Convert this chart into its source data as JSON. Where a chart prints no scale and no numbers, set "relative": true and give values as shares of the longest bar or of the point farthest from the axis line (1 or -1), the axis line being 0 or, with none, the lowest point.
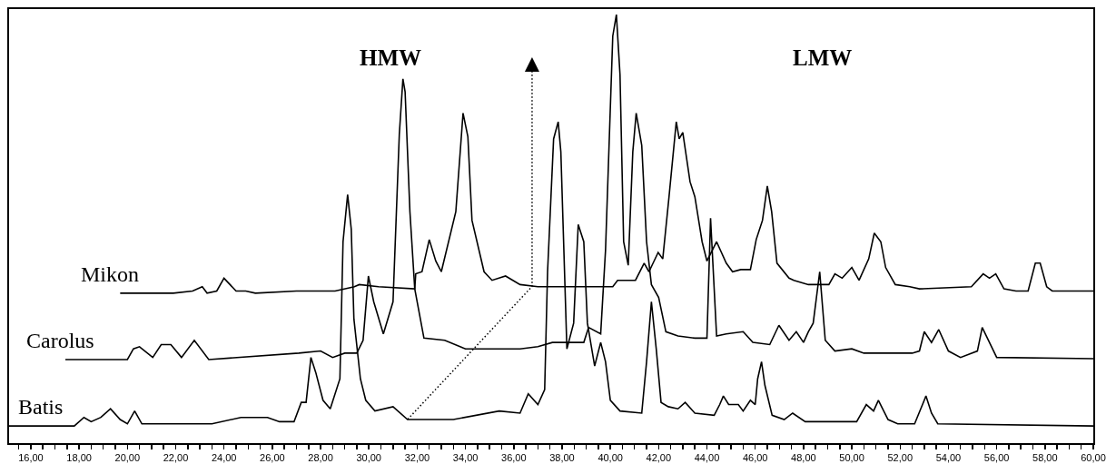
{
  "chart_data": {
    "type": "line",
    "relative": true,
    "legend": false,
    "grid": false,
    "marker": "none",
    "line_style": "solid",
    "annotations": [
      "HMW",
      "LMW"
    ],
    "xlim": [
      15.1,
      60
    ],
    "xticks": [
      {
        "value": 15.5,
        "label": null
      },
      {
        "value": 16,
        "label": "16,00"
      },
      {
        "value": 16.5,
        "label": null
      },
      {
        "value": 17,
        "label": null
      },
      {
        "value": 17.5,
        "label": null
      },
      {
        "value": 18,
        "label": "18,00"
      },
      {
        "value": 18.5,
        "label": null
      },
      {
        "value": 19,
        "label": null
      },
      {
        "value": 19.5,
        "label": null
      },
      {
        "value": 20,
        "label": "20,00"
      },
      {
        "value": 20.5,
        "label": null
      },
      {
        "value": 21,
        "label": null
      },
      {
        "value": 21.5,
        "label": null
      },
      {
        "value": 22,
        "label": "22,00"
      },
      {
        "value": 22.5,
        "label": null
      },
      {
        "value": 23,
        "label": null
      },
      {
        "value": 23.5,
        "label": null
      },
      {
        "value": 24,
        "label": "24,00"
      },
      {
        "value": 24.5,
        "label": null
      },
      {
        "value": 25,
        "label": null
      },
      {
        "value": 25.5,
        "label": null
      },
      {
        "value": 26,
        "label": "26,00"
      },
      {
        "value": 26.5,
        "label": null
      },
      {
        "value": 27,
        "label": null
      },
      {
        "value": 27.5,
        "label": null
      },
      {
        "value": 28,
        "label": "28,00"
      },
      {
        "value": 28.5,
        "label": null
      },
      {
        "value": 29,
        "label": null
      },
      {
        "value": 29.5,
        "label": null
      },
      {
        "value": 30,
        "label": "30,00"
      },
      {
        "value": 30.5,
        "label": null
      },
      {
        "value": 31,
        "label": null
      },
      {
        "value": 31.5,
        "label": null
      },
      {
        "value": 32,
        "label": "32,00"
      },
      {
        "value": 32.5,
        "label": null
      },
      {
        "value": 33,
        "label": null
      },
      {
        "value": 33.5,
        "label": null
      },
      {
        "value": 34,
        "label": "34,00"
      },
      {
        "value": 34.5,
        "label": null
      },
      {
        "value": 35,
        "label": null
      },
      {
        "value": 35.5,
        "label": null
      },
      {
        "value": 36,
        "label": "36,00"
      },
      {
        "value": 36.5,
        "label": null
      },
      {
        "value": 37,
        "label": null
      },
      {
        "value": 37.5,
        "label": null
      },
      {
        "value": 38,
        "label": "38,00"
      },
      {
        "value": 38.5,
        "label": null
      },
      {
        "value": 39,
        "label": null
      },
      {
        "value": 39.5,
        "label": null
      },
      {
        "value": 40,
        "label": "40,00"
      },
      {
        "value": 40.5,
        "label": null
      },
      {
        "value": 41,
        "label": null
      },
      {
        "value": 41.5,
        "label": null
      },
      {
        "value": 42,
        "label": "42,00"
      },
      {
        "value": 42.5,
        "label": null
      },
      {
        "value": 43,
        "label": null
      },
      {
        "value": 43.5,
        "label": null
      },
      {
        "value": 44,
        "label": "44,00"
      },
      {
        "value": 44.5,
        "label": null
      },
      {
        "value": 45,
        "label": null
      },
      {
        "value": 45.5,
        "label": null
      },
      {
        "value": 46,
        "label": "46,00"
      },
      {
        "value": 46.5,
        "label": null
      },
      {
        "value": 47,
        "label": null
      },
      {
        "value": 47.5,
        "label": null
      },
      {
        "value": 48,
        "label": "48,00"
      },
      {
        "value": 48.5,
        "label": null
      },
      {
        "value": 49,
        "label": null
      },
      {
        "value": 49.5,
        "label": null
      },
      {
        "value": 50,
        "label": "50,00"
      },
      {
        "value": 50.5,
        "label": null
      },
      {
        "value": 51,
        "label": null
      },
      {
        "value": 51.5,
        "label": null
      },
      {
        "value": 52,
        "label": "52,00"
      },
      {
        "value": 52.5,
        "label": null
      },
      {
        "value": 53,
        "label": null
      },
      {
        "value": 53.5,
        "label": null
      },
      {
        "value": 54,
        "label": "54,00"
      },
      {
        "value": 54.5,
        "label": null
      },
      {
        "value": 55,
        "label": null
      },
      {
        "value": 55.5,
        "label": null
      },
      {
        "value": 56,
        "label": "56,00"
      },
      {
        "value": 56.5,
        "label": null
      },
      {
        "value": 57,
        "label": null
      },
      {
        "value": 57.5,
        "label": null
      },
      {
        "value": 58,
        "label": "58,00"
      },
      {
        "value": 58.5,
        "label": null
      },
      {
        "value": 59,
        "label": null
      },
      {
        "value": 59.5,
        "label": null
      },
      {
        "value": 60,
        "label": "60,00"
      }
    ],
    "series": [
      {
        "name": "Mikon",
        "color": "#000000",
        "x": [
          19.7,
          21.9,
          22.7,
          23.1,
          23.3,
          23.7,
          24.0,
          24.5,
          24.9,
          25.3,
          27.0,
          28.6,
          29.4,
          29.6,
          30.4,
          31.9,
          31.94,
          32.2,
          32.5,
          32.77,
          33.0,
          33.6,
          33.9,
          34.1,
          34.27,
          34.77,
          35.1,
          35.66,
          36.26,
          37.0,
          40.1,
          40.3,
          41.04,
          41.4,
          41.6,
          41.98,
          42.17,
          42.43,
          42.73,
          42.85,
          43.0,
          43.3,
          43.5,
          43.8,
          44.0,
          44.4,
          44.8,
          45.06,
          45.4,
          45.8,
          46.04,
          46.3,
          46.5,
          46.68,
          46.9,
          47.4,
          47.6,
          48.2,
          49.05,
          49.3,
          49.6,
          50.0,
          50.3,
          50.7,
          50.93,
          51.2,
          51.4,
          51.8,
          52.4,
          52.8,
          54.95,
          55.44,
          55.7,
          55.96,
          56.3,
          56.8,
          57.3,
          57.6,
          57.8,
          58.07,
          58.3,
          60
        ],
        "values": [
          0.35,
          0.35,
          0.355,
          0.365,
          0.35,
          0.355,
          0.385,
          0.355,
          0.355,
          0.35,
          0.355,
          0.355,
          0.365,
          0.37,
          0.365,
          0.36,
          0.395,
          0.4,
          0.475,
          0.425,
          0.4,
          0.54,
          0.77,
          0.715,
          0.52,
          0.4,
          0.38,
          0.39,
          0.37,
          0.365,
          0.365,
          0.38,
          0.38,
          0.42,
          0.4,
          0.445,
          0.43,
          0.575,
          0.75,
          0.71,
          0.725,
          0.61,
          0.575,
          0.47,
          0.425,
          0.47,
          0.42,
          0.4,
          0.405,
          0.405,
          0.475,
          0.52,
          0.6,
          0.54,
          0.42,
          0.385,
          0.38,
          0.37,
          0.37,
          0.395,
          0.385,
          0.41,
          0.38,
          0.43,
          0.49,
          0.47,
          0.41,
          0.37,
          0.365,
          0.36,
          0.365,
          0.395,
          0.385,
          0.395,
          0.36,
          0.355,
          0.355,
          0.42,
          0.42,
          0.365,
          0.355,
          0.355
        ]
      },
      {
        "name": "Carolus",
        "color": "#000000",
        "x": [
          17.43,
          20.0,
          20.25,
          20.5,
          21.05,
          21.4,
          21.8,
          22.24,
          22.77,
          23.37,
          27.1,
          28.0,
          28.5,
          29.0,
          29.5,
          29.76,
          29.98,
          30.2,
          30.6,
          31.0,
          31.26,
          31.41,
          31.5,
          31.7,
          31.9,
          32.28,
          33.14,
          34.0,
          35.1,
          36.26,
          37.0,
          37.6,
          38.2,
          38.9,
          39.1,
          39.6,
          39.8,
          40.1,
          40.25,
          40.4,
          40.55,
          40.74,
          40.93,
          41.07,
          41.3,
          41.5,
          41.7,
          42.0,
          42.3,
          42.8,
          43.5,
          44.0,
          44.15,
          44.4,
          44.8,
          45.5,
          45.9,
          46.6,
          46.98,
          47.4,
          47.7,
          48.0,
          48.2,
          48.4,
          48.67,
          48.9,
          49.3,
          50.0,
          50.5,
          52.5,
          52.8,
          53.0,
          53.3,
          53.6,
          54.0,
          54.5,
          55.2,
          55.4,
          56.0,
          60
        ],
        "values": [
          0.195,
          0.195,
          0.22,
          0.225,
          0.2,
          0.23,
          0.23,
          0.2,
          0.24,
          0.195,
          0.21,
          0.215,
          0.2,
          0.21,
          0.21,
          0.24,
          0.39,
          0.33,
          0.255,
          0.33,
          0.72,
          0.85,
          0.82,
          0.54,
          0.36,
          0.245,
          0.24,
          0.22,
          0.22,
          0.22,
          0.225,
          0.235,
          0.235,
          0.235,
          0.27,
          0.255,
          0.45,
          0.95,
          1.0,
          0.86,
          0.47,
          0.415,
          0.68,
          0.77,
          0.695,
          0.47,
          0.37,
          0.34,
          0.26,
          0.25,
          0.245,
          0.245,
          0.525,
          0.25,
          0.255,
          0.26,
          0.235,
          0.23,
          0.275,
          0.24,
          0.26,
          0.235,
          0.26,
          0.28,
          0.4,
          0.24,
          0.215,
          0.22,
          0.21,
          0.21,
          0.215,
          0.26,
          0.235,
          0.265,
          0.215,
          0.2,
          0.215,
          0.27,
          0.2,
          0.197
        ]
      },
      {
        "name": "Batis",
        "color": "#000000",
        "x": [
          15.1,
          17.8,
          18.2,
          18.5,
          18.9,
          19.3,
          19.7,
          20.0,
          20.3,
          20.6,
          21.0,
          23.5,
          24.7,
          25.8,
          26.3,
          26.9,
          27.2,
          27.4,
          27.6,
          27.8,
          28.1,
          28.4,
          28.8,
          28.93,
          29.12,
          29.27,
          29.38,
          29.65,
          29.87,
          30.25,
          31.0,
          31.6,
          33.5,
          35.4,
          36.26,
          36.6,
          37.0,
          37.28,
          37.4,
          37.65,
          37.84,
          37.95,
          38.2,
          38.48,
          38.67,
          38.9,
          39.05,
          39.35,
          39.6,
          39.8,
          40.0,
          40.4,
          41.3,
          41.5,
          41.7,
          41.9,
          42.1,
          42.4,
          42.8,
          43.1,
          43.5,
          44.3,
          44.53,
          44.68,
          44.9,
          45.3,
          45.5,
          45.8,
          46.0,
          46.1,
          46.26,
          46.4,
          46.7,
          47.2,
          47.55,
          48.07,
          49.0,
          50.2,
          50.6,
          50.9,
          51.1,
          51.5,
          51.9,
          52.6,
          53.0,
          53.07,
          53.3,
          53.56,
          60
        ],
        "values": [
          0.04,
          0.04,
          0.06,
          0.05,
          0.06,
          0.08,
          0.055,
          0.045,
          0.075,
          0.045,
          0.045,
          0.045,
          0.06,
          0.06,
          0.05,
          0.05,
          0.095,
          0.095,
          0.2,
          0.165,
          0.1,
          0.08,
          0.15,
          0.47,
          0.58,
          0.5,
          0.29,
          0.15,
          0.1,
          0.075,
          0.085,
          0.055,
          0.055,
          0.075,
          0.07,
          0.115,
          0.09,
          0.125,
          0.4,
          0.71,
          0.75,
          0.68,
          0.22,
          0.28,
          0.51,
          0.47,
          0.28,
          0.18,
          0.235,
          0.19,
          0.1,
          0.075,
          0.07,
          0.19,
          0.33,
          0.22,
          0.095,
          0.085,
          0.08,
          0.095,
          0.07,
          0.065,
          0.09,
          0.11,
          0.09,
          0.09,
          0.075,
          0.1,
          0.09,
          0.15,
          0.19,
          0.135,
          0.065,
          0.055,
          0.07,
          0.05,
          0.05,
          0.05,
          0.09,
          0.075,
          0.1,
          0.055,
          0.045,
          0.045,
          0.1,
          0.11,
          0.07,
          0.045,
          0.04
        ]
      }
    ]
  }
}
